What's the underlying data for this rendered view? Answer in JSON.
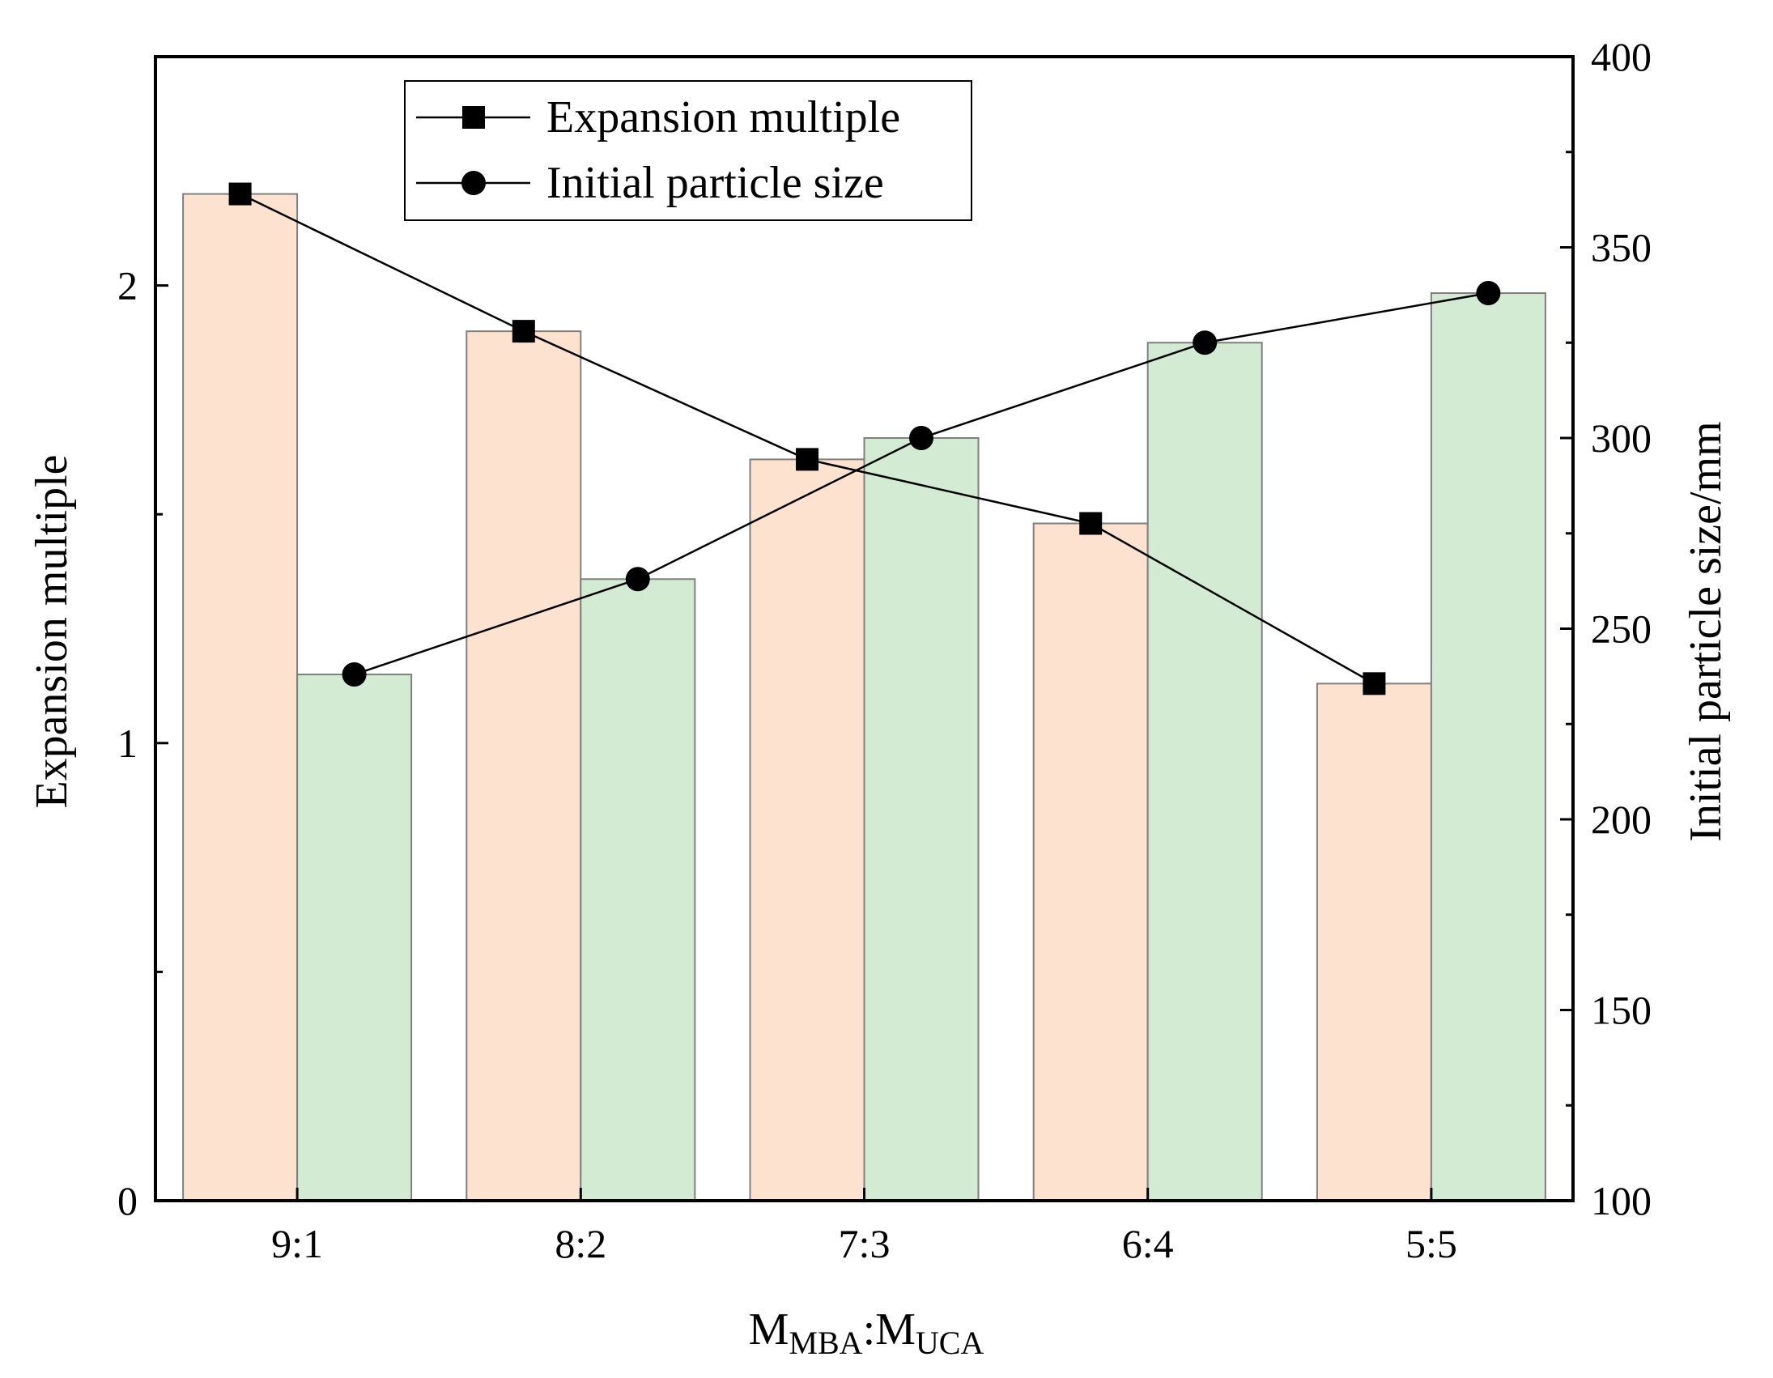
{
  "chart_data": {
    "type": "bar",
    "categories": [
      "9:1",
      "8:2",
      "7:3",
      "6:4",
      "5:5"
    ],
    "series": [
      {
        "name": "Expansion multiple",
        "axis": "left",
        "values": [
          2.2,
          1.9,
          1.62,
          1.48,
          1.13
        ]
      },
      {
        "name": "Initial particle size",
        "axis": "right",
        "values": [
          238,
          263,
          300,
          325,
          338
        ]
      }
    ],
    "xlabel": {
      "main": "M",
      "sub1": "MBA",
      "sep": ":M",
      "sub2": "UCA"
    },
    "ylabel_left": "Expansion multiple",
    "ylabel_right": "Initial particle size/mm",
    "ylim_left": [
      0,
      2.5
    ],
    "ylim_right": [
      100,
      400
    ],
    "yticks_left": [
      "0",
      "1",
      "2"
    ],
    "yticks_right": [
      "100",
      "150",
      "200",
      "250",
      "300",
      "350",
      "400"
    ],
    "legend": {
      "placement": "top-center",
      "entries": [
        "Expansion multiple",
        "Initial particle size"
      ]
    },
    "colors": {
      "bar_left": "#fde3cf",
      "bar_right": "#d3ebd2",
      "bar_edge": "#7f7f7f",
      "line": "#000000"
    }
  }
}
